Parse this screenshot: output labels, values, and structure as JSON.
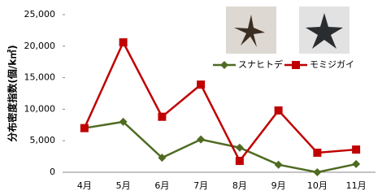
{
  "chart_data": {
    "type": "line",
    "y_label": "分布密度指数(個/k㎡)",
    "categories": [
      "4月",
      "5月",
      "6月",
      "7月",
      "8月",
      "9月",
      "10月",
      "11月"
    ],
    "series": [
      {
        "name": "スナヒトデ",
        "color": "#4f6b22",
        "marker": "diamond",
        "values": [
          7000,
          8000,
          2300,
          5200,
          3900,
          1200,
          0,
          1300
        ]
      },
      {
        "name": "モミジガイ",
        "color": "#c00000",
        "marker": "square",
        "values": [
          7000,
          20600,
          8800,
          13900,
          1800,
          9800,
          3100,
          3600
        ]
      }
    ],
    "ylim": [
      0,
      25000
    ],
    "yticks": [
      0,
      {
        "value": 5000,
        "label": "5,000"
      },
      {
        "value": 10000,
        "label": "10,000"
      },
      {
        "value": 15000,
        "label": "15,000"
      },
      {
        "value": 20000,
        "label": "20,000"
      },
      {
        "value": 25000,
        "label": "25,000"
      }
    ],
    "grid": false
  }
}
